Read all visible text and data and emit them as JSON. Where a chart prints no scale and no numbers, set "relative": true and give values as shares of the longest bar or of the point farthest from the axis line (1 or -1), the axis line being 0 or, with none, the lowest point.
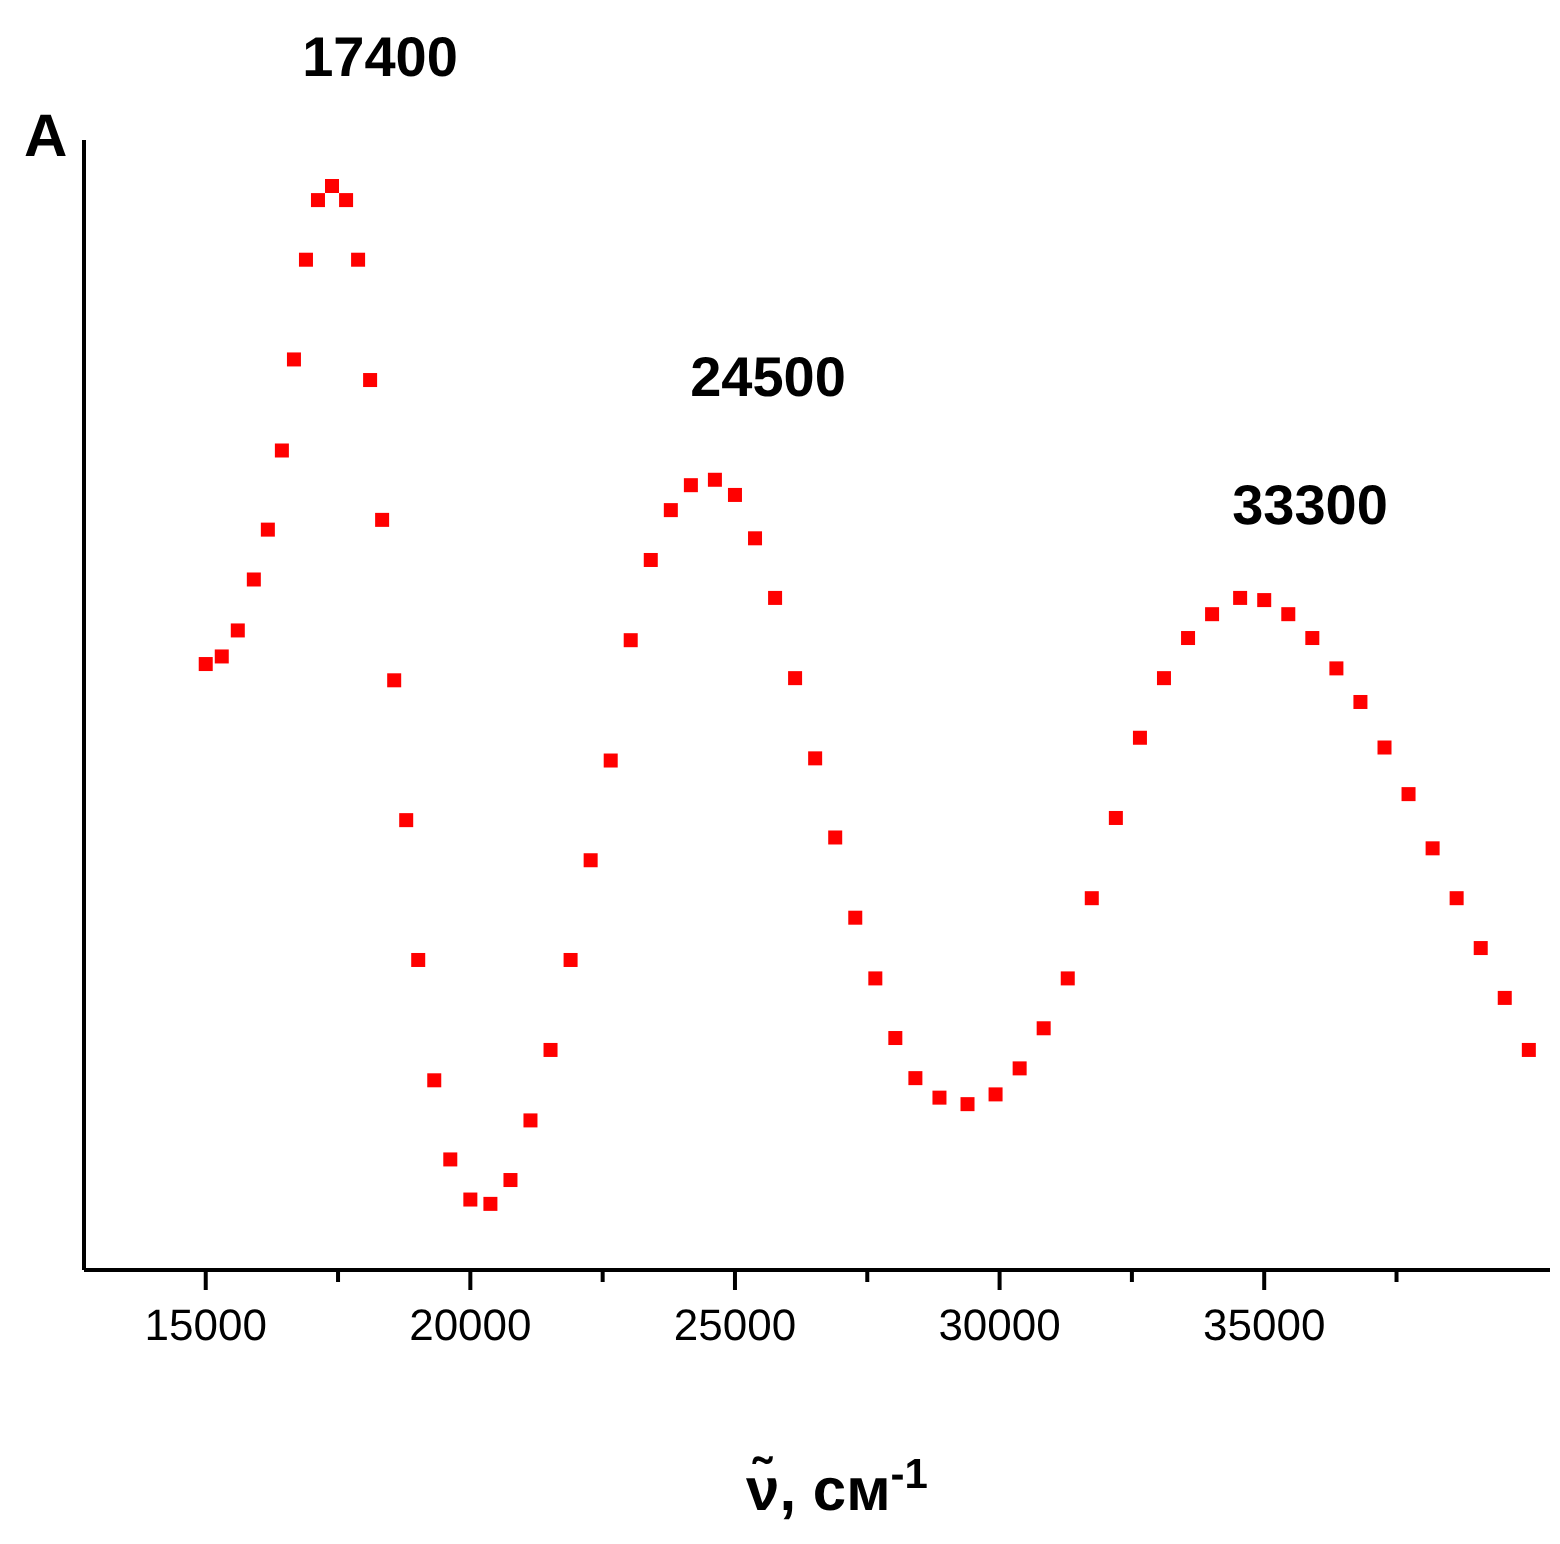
{
  "chart_data": {
    "type": "scatter",
    "relative": true,
    "ylabel": "A",
    "xlabel": "ν̃, см$^{-1}$",
    "marker": "square",
    "color": "#ff0000",
    "xlim": [
      12700,
      40400
    ],
    "xticks": [
      15000,
      {
        "value": 17500,
        "label": null
      },
      20000,
      {
        "value": 22500,
        "label": null
      },
      25000,
      {
        "value": 27500,
        "label": null
      },
      30000,
      {
        "value": 32500,
        "label": null
      },
      35000,
      {
        "value": 37500,
        "label": null
      }
    ],
    "x": [
      15000,
      15303,
      15606,
      15909,
      16174,
      16439,
      16667,
      16894,
      17121,
      17386,
      17652,
      17879,
      18106,
      18333,
      18561,
      18788,
      19015,
      19318,
      19621,
      20000,
      20379,
      20758,
      21136,
      21515,
      21894,
      22273,
      22652,
      23030,
      23409,
      23788,
      24167,
      24621,
      25000,
      25379,
      25758,
      26136,
      26515,
      26894,
      27273,
      27652,
      28030,
      28409,
      28864,
      29394,
      29924,
      30379,
      30833,
      31288,
      31742,
      32197,
      32652,
      33106,
      33561,
      34015,
      34545,
      35000,
      35455,
      35909,
      36364,
      36818,
      37273,
      37727,
      38182,
      38636,
      39091,
      39545,
      40000
    ],
    "values": [
      0.559,
      0.566,
      0.59,
      0.637,
      0.683,
      0.756,
      0.84,
      0.932,
      0.987,
      1.0,
      0.987,
      0.932,
      0.821,
      0.692,
      0.544,
      0.415,
      0.286,
      0.175,
      0.102,
      0.065,
      0.061,
      0.083,
      0.138,
      0.203,
      0.286,
      0.378,
      0.47,
      0.581,
      0.655,
      0.701,
      0.724,
      0.729,
      0.715,
      0.675,
      0.62,
      0.546,
      0.472,
      0.399,
      0.325,
      0.269,
      0.214,
      0.177,
      0.159,
      0.153,
      0.162,
      0.186,
      0.223,
      0.269,
      0.343,
      0.417,
      0.491,
      0.546,
      0.583,
      0.605,
      0.62,
      0.618,
      0.605,
      0.583,
      0.555,
      0.524,
      0.482,
      0.439,
      0.389,
      0.343,
      0.297,
      0.251,
      0.203
    ],
    "annotations": [
      "17400",
      "24500",
      "33300"
    ]
  }
}
